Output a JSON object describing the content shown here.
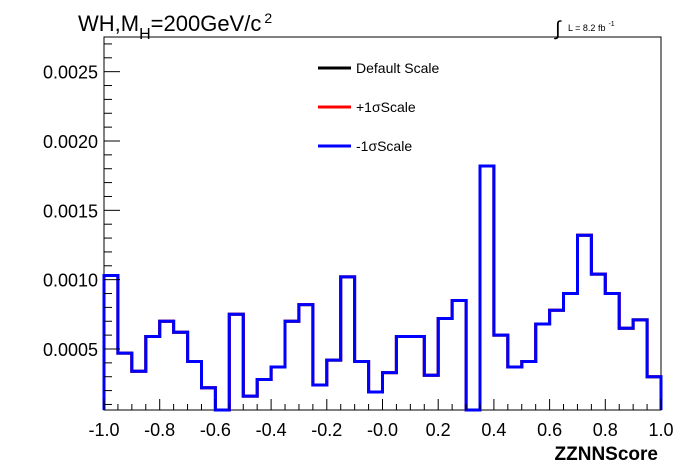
{
  "chart_data": {
    "type": "line",
    "title_main": "WH,M",
    "title_sub": "H",
    "title_rest": "=200GeV/c",
    "title_sup": "2",
    "lumi_int": "∫",
    "lumi_text": "L = 8.2 fb",
    "lumi_sup": "-1",
    "xlabel": "ZZNNScore",
    "xlim": [
      -1.0,
      1.0
    ],
    "ylim": [
      6e-05,
      0.00275
    ],
    "xticks": [
      "-1.0",
      "-0.8",
      "-0.6",
      "-0.4",
      "-0.2",
      "-0.0",
      "0.2",
      "0.4",
      "0.6",
      "0.8",
      "1.0"
    ],
    "yticks": [
      "0.0005",
      "0.0010",
      "0.0015",
      "0.0020",
      "0.0025"
    ],
    "bin_edges": [
      -1.0,
      -0.95,
      -0.9,
      -0.85,
      -0.8,
      -0.75,
      -0.7,
      -0.65,
      -0.6,
      -0.55,
      -0.5,
      -0.45,
      -0.4,
      -0.35,
      -0.3,
      -0.25,
      -0.2,
      -0.15,
      -0.1,
      -0.05,
      0.0,
      0.05,
      0.1,
      0.15,
      0.2,
      0.25,
      0.3,
      0.35,
      0.4,
      0.45,
      0.5,
      0.55,
      0.6,
      0.65,
      0.7,
      0.75,
      0.8,
      0.85,
      0.9,
      0.95,
      1.0
    ],
    "series": [
      {
        "name": "Default Scale",
        "color": "#000000",
        "values": [
          0.00103,
          0.00047,
          0.00034,
          0.00059,
          0.0007,
          0.00062,
          0.00041,
          0.00022,
          6e-05,
          0.00075,
          0.00016,
          0.00028,
          0.00037,
          0.0007,
          0.00082,
          0.00024,
          0.00042,
          0.00102,
          0.00041,
          0.00019,
          0.00033,
          0.00059,
          0.00059,
          0.00031,
          0.00072,
          0.00085,
          6e-05,
          0.00182,
          0.0006,
          0.00037,
          0.00041,
          0.00068,
          0.00078,
          0.0009,
          0.00132,
          0.00104,
          0.0009,
          0.00065,
          0.00071,
          0.0003
        ]
      },
      {
        "name": "+1σScale",
        "color": "#ff0000",
        "values": [
          0.00103,
          0.00047,
          0.00034,
          0.00059,
          0.0007,
          0.00062,
          0.00041,
          0.00022,
          6e-05,
          0.00075,
          0.00016,
          0.00028,
          0.00037,
          0.0007,
          0.00082,
          0.00024,
          0.00042,
          0.00102,
          0.00041,
          0.00019,
          0.00033,
          0.00059,
          0.00059,
          0.00031,
          0.00072,
          0.00085,
          6e-05,
          0.00182,
          0.0006,
          0.00037,
          0.00041,
          0.00068,
          0.00078,
          0.0009,
          0.00132,
          0.00104,
          0.0009,
          0.00065,
          0.00071,
          0.0003
        ]
      },
      {
        "name": "-1σScale",
        "color": "#0000ff",
        "values": [
          0.00103,
          0.00047,
          0.00034,
          0.00059,
          0.0007,
          0.00062,
          0.00041,
          0.00022,
          6e-05,
          0.00075,
          0.00016,
          0.00028,
          0.00037,
          0.0007,
          0.00082,
          0.00024,
          0.00042,
          0.00102,
          0.00041,
          0.00019,
          0.00033,
          0.00059,
          0.00059,
          0.00031,
          0.00072,
          0.00085,
          6e-05,
          0.00182,
          0.0006,
          0.00037,
          0.00041,
          0.00068,
          0.00078,
          0.0009,
          0.00132,
          0.00104,
          0.0009,
          0.00065,
          0.00071,
          0.0003
        ]
      }
    ],
    "legend_position": "top-center",
    "grid": false
  }
}
